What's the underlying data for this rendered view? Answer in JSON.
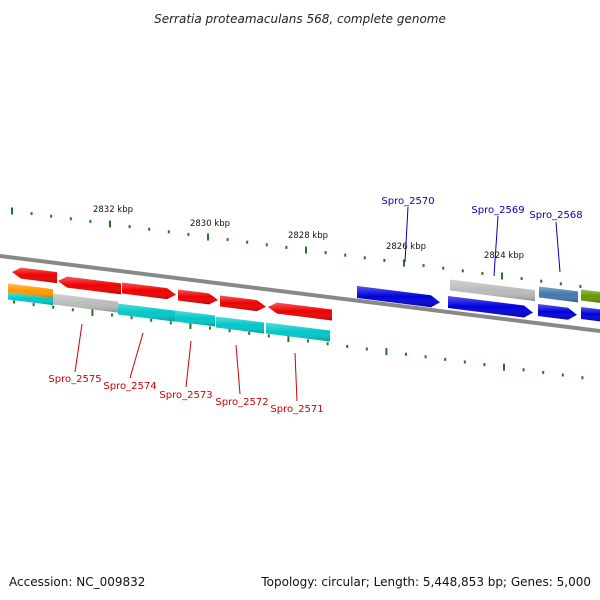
{
  "title": "Serratia proteamaculans 568, complete genome",
  "footer": {
    "accession": "Accession: NC_009832",
    "summary": "Topology: circular; Length: 5,448,853 bp; Genes: 5,000"
  },
  "colors": {
    "red": "#ee0000",
    "blue": "#0000dd",
    "cyan": "#00c8c8",
    "gray": "#bbbbbb",
    "orange": "#ff9900",
    "steel": "#4477aa",
    "olive": "#669900",
    "tick": "#227722",
    "backbone": "#888888",
    "label_red": "#cc0000",
    "label_blue": "#0000bb"
  },
  "kbp_labels": [
    "2832 kbp",
    "2830 kbp",
    "2828 kbp",
    "2826 kbp",
    "2824 kbp"
  ],
  "upper_labels": [
    "Spro_2570",
    "Spro_2569",
    "Spro_2568"
  ],
  "lower_labels": [
    "Spro_2575",
    "Spro_2574",
    "Spro_2573",
    "Spro_2572",
    "Spro_2571"
  ]
}
